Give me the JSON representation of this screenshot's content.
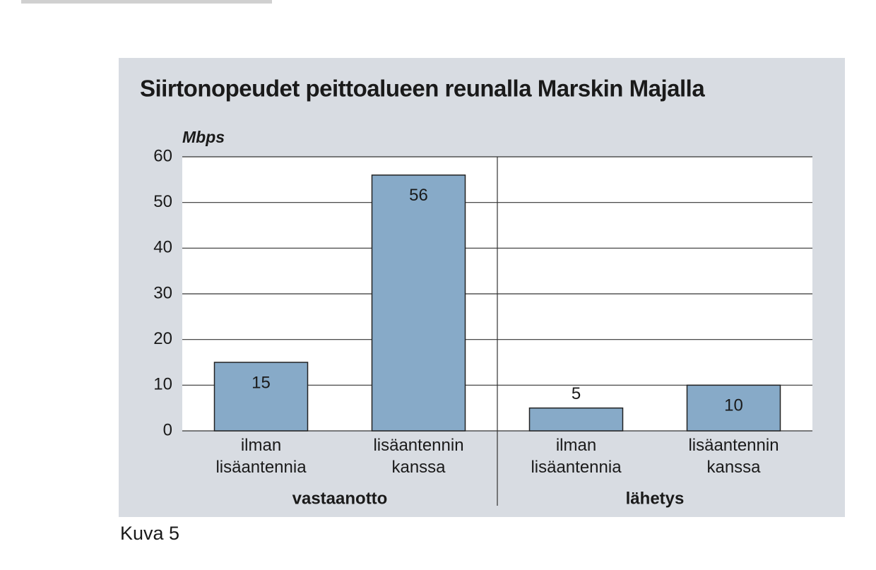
{
  "chart_data": {
    "type": "bar",
    "title": "Siirtonopeudet peittoalueen reunalla Marskin Majalla",
    "y_label": "Mbps",
    "categories": [
      "ilman lisäantennia",
      "lisäantennin kanssa",
      "ilman lisäantennia",
      "lisäantennin kanssa"
    ],
    "groups": [
      "vastaanotto",
      "lähetys"
    ],
    "values": [
      15,
      56,
      5,
      10
    ],
    "color": "#87aac8",
    "ylim": [
      0,
      60
    ],
    "yticks": [
      0,
      10,
      20,
      30,
      40,
      50,
      60
    ],
    "grid": true,
    "caption": "Kuva 5"
  }
}
